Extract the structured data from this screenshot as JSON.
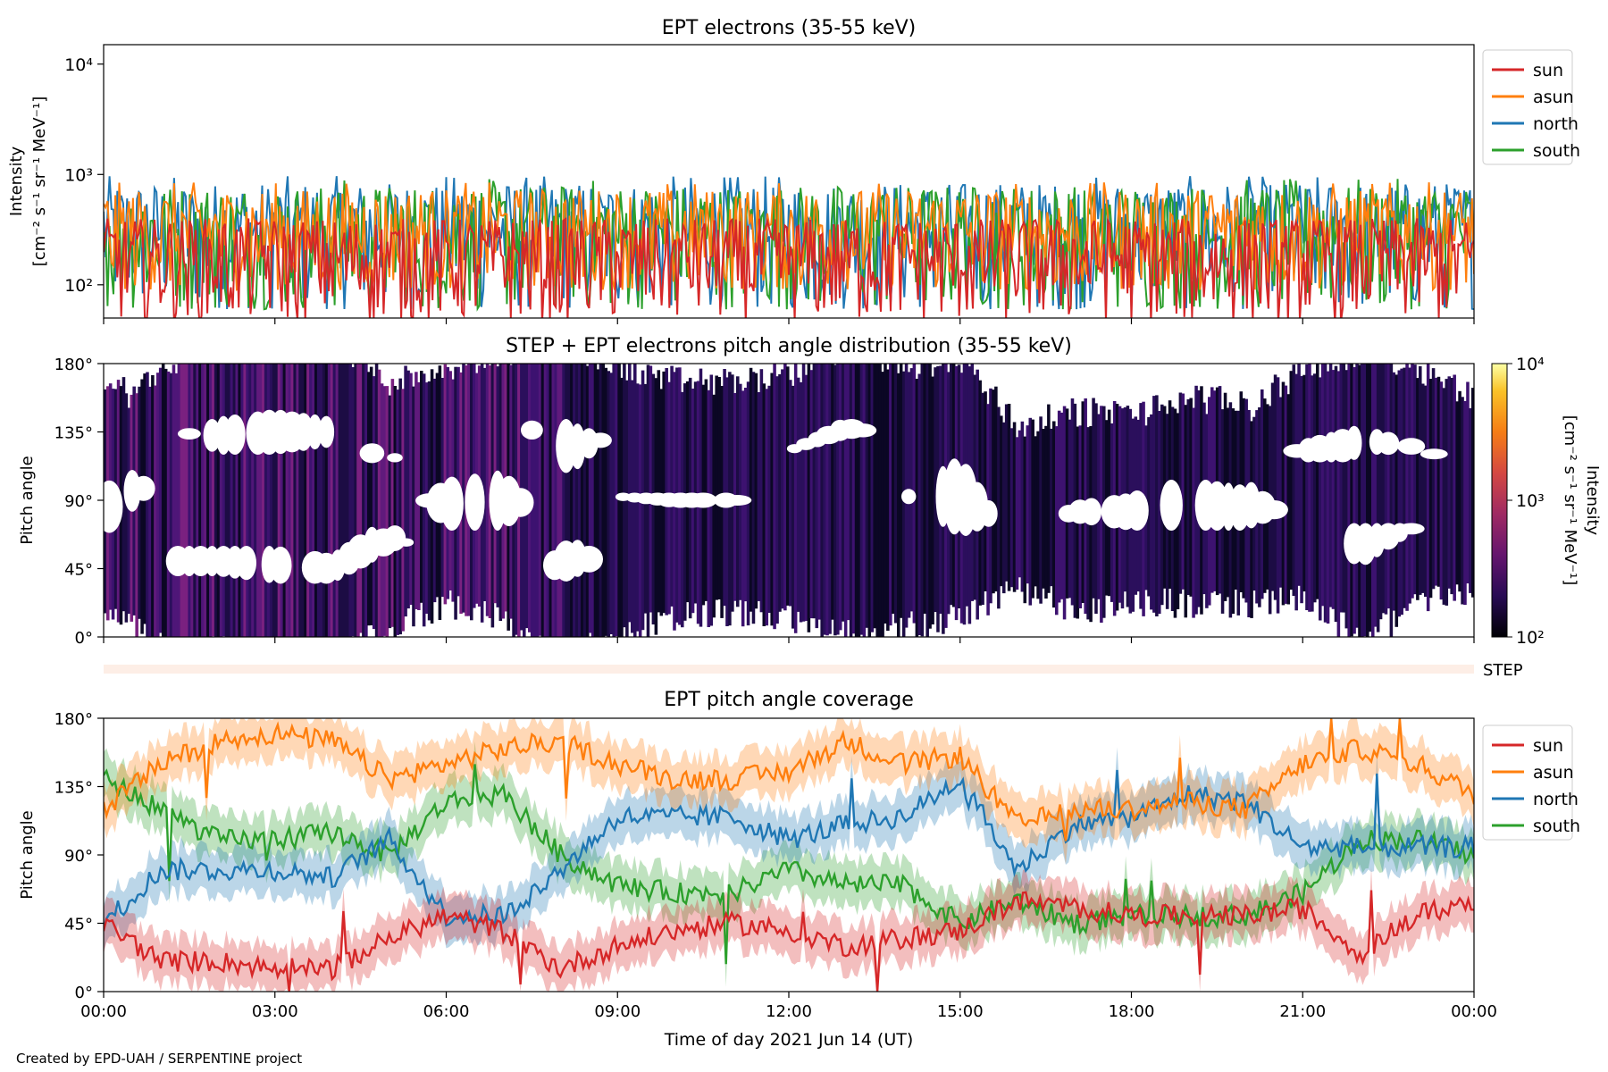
{
  "footer": "Created by EPD-UAH / SERPENTINE project",
  "colors": {
    "sun": "#d62728",
    "asun": "#ff7f0e",
    "north": "#1f77b4",
    "south": "#2ca02c",
    "step_band": "#fdeee6"
  },
  "chart_data": [
    {
      "type": "line",
      "title": "EPT electrons (35-55 keV)",
      "ylabel": "Intensity",
      "yunit": "[cm⁻² s⁻¹ sr⁻¹ MeV⁻¹]",
      "yscale": "log",
      "ylim": [
        50,
        15000
      ],
      "yticks": [
        {
          "value": 100,
          "label": "10²"
        },
        {
          "value": 1000,
          "label": "10³"
        },
        {
          "value": 10000,
          "label": "10⁴"
        }
      ],
      "xlim": [
        "2021-06-14 00:00",
        "2021-06-15 00:00"
      ],
      "grid": false,
      "legend": "outside-right-top",
      "series": [
        {
          "name": "north",
          "typical_range": [
            60,
            850
          ]
        },
        {
          "name": "south",
          "typical_range": [
            60,
            800
          ]
        },
        {
          "name": "asun",
          "typical_range": [
            90,
            750
          ]
        },
        {
          "name": "sun",
          "typical_range": [
            50,
            400
          ]
        }
      ]
    },
    {
      "type": "heatmap",
      "title": "STEP + EPT electrons pitch angle distribution (35-55 keV)",
      "ylabel": "Pitch angle",
      "ylim": [
        0,
        180
      ],
      "yticks": [
        "0°",
        "45°",
        "90°",
        "135°",
        "180°"
      ],
      "xlim": [
        "2021-06-14 00:00",
        "2021-06-15 00:00"
      ],
      "colorbar": {
        "label": "Intensity",
        "unit": "[cm⁻² s⁻¹ sr⁻¹ MeV⁻¹]",
        "scale": "log",
        "range": [
          100,
          10000
        ],
        "ticks": [
          "10²",
          "10³",
          "10⁴"
        ],
        "colormap": "inferno",
        "placement": "right"
      },
      "step_label": "STEP"
    },
    {
      "type": "line",
      "title": "EPT pitch angle coverage",
      "ylabel": "Pitch angle",
      "xlabel": "Time of day 2021 Jun 14 (UT)",
      "ylim": [
        0,
        180
      ],
      "yticks": [
        "0°",
        "45°",
        "90°",
        "135°",
        "180°"
      ],
      "xticks": [
        "00:00",
        "03:00",
        "06:00",
        "09:00",
        "12:00",
        "15:00",
        "18:00",
        "21:00",
        "00:00"
      ],
      "x_hours": [
        0,
        1,
        2,
        3,
        4,
        5,
        6,
        7,
        8,
        9,
        10,
        11,
        12,
        13,
        14,
        15,
        16,
        17,
        18,
        19,
        20,
        21,
        22,
        23,
        24
      ],
      "legend": "outside-right-top",
      "band_half_width_deg": 15,
      "series": [
        {
          "name": "sun",
          "values": [
            45,
            20,
            20,
            15,
            15,
            35,
            50,
            40,
            15,
            30,
            40,
            45,
            40,
            30,
            35,
            40,
            60,
            55,
            50,
            50,
            50,
            55,
            25,
            50,
            60
          ]
        },
        {
          "name": "asun",
          "values": [
            120,
            150,
            165,
            170,
            165,
            140,
            150,
            160,
            165,
            150,
            140,
            140,
            145,
            165,
            150,
            155,
            110,
            120,
            120,
            125,
            120,
            150,
            160,
            150,
            130
          ]
        },
        {
          "name": "north",
          "values": [
            45,
            80,
            80,
            80,
            75,
            100,
            50,
            50,
            80,
            115,
            115,
            115,
            100,
            110,
            115,
            140,
            80,
            110,
            115,
            130,
            125,
            95,
            95,
            95,
            95
          ]
        },
        {
          "name": "south",
          "values": [
            140,
            120,
            100,
            100,
            105,
            90,
            125,
            130,
            90,
            70,
            65,
            65,
            80,
            70,
            70,
            45,
            60,
            45,
            50,
            50,
            50,
            65,
            100,
            100,
            90
          ]
        }
      ]
    }
  ]
}
